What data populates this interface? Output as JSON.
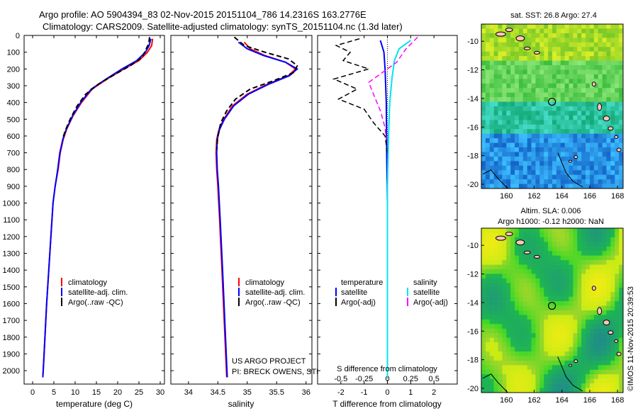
{
  "header": {
    "line1": "Argo profile: AO 5904394_83 02-Nov-2015 20151104_786 14.2316S 163.2776E",
    "line2": "Climatology: CARS2009. Satellite-adjusted climatology: synTS_20151104.nc (1.3d later)"
  },
  "footer": {
    "project": "US ARGO PROJECT",
    "pi": "PI: BRECK OWENS, STEVE JAYNE, P.E. ROBBINS",
    "stamp": "©IMOS 11-Nov-2015 20:39:53"
  },
  "colors": {
    "climatology": "#ff0000",
    "satellite": "#0000ff",
    "argo": "#000000",
    "salinity_sat": "#00e5ee",
    "salinity_argo": "#ff00ff"
  },
  "chart_data": [
    {
      "type": "line",
      "id": "temperature",
      "xlabel": "temperature (deg C)",
      "ylabel": "",
      "xlim": [
        -2,
        31
      ],
      "ylim": [
        2080,
        0
      ],
      "xticks": [
        0,
        5,
        10,
        15,
        20,
        25,
        30
      ],
      "yticks": [
        0,
        100,
        200,
        300,
        400,
        500,
        600,
        700,
        800,
        900,
        1000,
        1100,
        1200,
        1300,
        1400,
        1500,
        1600,
        1700,
        1800,
        1900,
        2000
      ],
      "legend": [
        "climatology",
        "satellite-adj. clim.",
        "Argo(..raw -QC)"
      ],
      "series": [
        {
          "name": "climatology",
          "style": "solid",
          "points": [
            [
              28.2,
              20
            ],
            [
              28.0,
              60
            ],
            [
              27.0,
              100
            ],
            [
              25.0,
              150
            ],
            [
              21.5,
              200
            ],
            [
              17.5,
              260
            ],
            [
              14.0,
              320
            ],
            [
              11.5,
              400
            ],
            [
              9.5,
              480
            ],
            [
              8.0,
              560
            ],
            [
              7.2,
              620
            ],
            [
              6.5,
              700
            ],
            [
              6.0,
              800
            ],
            [
              5.3,
              900
            ],
            [
              4.8,
              1000
            ],
            [
              4.3,
              1200
            ],
            [
              3.8,
              1400
            ],
            [
              3.3,
              1600
            ],
            [
              2.9,
              1800
            ],
            [
              2.6,
              1950
            ],
            [
              2.4,
              2040
            ]
          ]
        },
        {
          "name": "satellite-adj. clim.",
          "style": "solid",
          "points": [
            [
              27.8,
              20
            ],
            [
              27.4,
              60
            ],
            [
              26.5,
              100
            ],
            [
              24.5,
              150
            ],
            [
              21.0,
              200
            ],
            [
              17.3,
              260
            ],
            [
              13.8,
              320
            ],
            [
              11.3,
              400
            ],
            [
              9.4,
              480
            ],
            [
              7.9,
              560
            ],
            [
              7.1,
              620
            ],
            [
              6.4,
              700
            ],
            [
              5.9,
              800
            ],
            [
              5.3,
              900
            ],
            [
              4.8,
              1000
            ],
            [
              4.3,
              1200
            ],
            [
              3.8,
              1400
            ],
            [
              3.3,
              1600
            ],
            [
              2.9,
              1800
            ],
            [
              2.6,
              1950
            ],
            [
              2.4,
              2040
            ]
          ]
        },
        {
          "name": "Argo(..raw -QC)",
          "style": "dashed",
          "points": [
            [
              27.5,
              10
            ],
            [
              27.3,
              50
            ],
            [
              26.5,
              90
            ],
            [
              25.8,
              130
            ],
            [
              23.0,
              180
            ],
            [
              19.5,
              230
            ],
            [
              15.5,
              290
            ],
            [
              12.5,
              350
            ],
            [
              10.5,
              420
            ],
            [
              9.0,
              490
            ],
            [
              7.8,
              560
            ],
            [
              7.0,
              620
            ]
          ]
        }
      ]
    },
    {
      "type": "line",
      "id": "salinity",
      "xlabel": "salinity",
      "ylabel": "",
      "xlim": [
        33.7,
        36.1
      ],
      "ylim": [
        2080,
        0
      ],
      "xticks": [
        34,
        34.5,
        35,
        35.5,
        36
      ],
      "legend": [
        "climatology",
        "satellite-adj. clim.",
        "Argo(..raw -QC)"
      ],
      "series": [
        {
          "name": "climatology",
          "style": "solid",
          "points": [
            [
              34.95,
              40
            ],
            [
              35.05,
              80
            ],
            [
              35.3,
              120
            ],
            [
              35.65,
              160
            ],
            [
              35.82,
              200
            ],
            [
              35.7,
              240
            ],
            [
              35.35,
              290
            ],
            [
              35.0,
              350
            ],
            [
              34.75,
              420
            ],
            [
              34.6,
              500
            ],
            [
              34.52,
              560
            ],
            [
              34.48,
              620
            ],
            [
              34.47,
              700
            ],
            [
              34.48,
              800
            ],
            [
              34.5,
              900
            ],
            [
              34.53,
              1100
            ],
            [
              34.57,
              1400
            ],
            [
              34.62,
              1800
            ],
            [
              34.65,
              2040
            ]
          ]
        },
        {
          "name": "satellite-adj. clim.",
          "style": "solid",
          "points": [
            [
              34.85,
              40
            ],
            [
              35.0,
              80
            ],
            [
              35.28,
              120
            ],
            [
              35.65,
              160
            ],
            [
              35.85,
              200
            ],
            [
              35.72,
              240
            ],
            [
              35.37,
              290
            ],
            [
              35.02,
              350
            ],
            [
              34.77,
              420
            ],
            [
              34.61,
              500
            ],
            [
              34.53,
              560
            ],
            [
              34.49,
              620
            ],
            [
              34.48,
              700
            ],
            [
              34.49,
              800
            ],
            [
              34.51,
              900
            ],
            [
              34.54,
              1100
            ],
            [
              34.58,
              1400
            ],
            [
              34.63,
              1800
            ],
            [
              34.66,
              2040
            ]
          ]
        },
        {
          "name": "Argo(..raw -QC)",
          "style": "dashed",
          "points": [
            [
              34.78,
              10
            ],
            [
              34.95,
              60
            ],
            [
              35.3,
              100
            ],
            [
              35.7,
              140
            ],
            [
              35.85,
              180
            ],
            [
              35.8,
              220
            ],
            [
              35.45,
              270
            ],
            [
              35.05,
              320
            ],
            [
              34.8,
              380
            ],
            [
              34.65,
              450
            ],
            [
              34.55,
              520
            ],
            [
              34.5,
              600
            ],
            [
              34.48,
              680
            ]
          ]
        }
      ]
    },
    {
      "type": "line",
      "id": "difference",
      "xlabel": "T difference from climatology",
      "xlabel_top": "S difference from climatology",
      "xlim": [
        -3,
        3
      ],
      "ylim": [
        2080,
        0
      ],
      "xticks": [
        -2,
        -1,
        0,
        1,
        2
      ],
      "xticks_top": [
        -0.5,
        -0.25,
        0,
        0.25,
        0.5
      ],
      "xticklabels_top": [
        "-0.5",
        "-0.25",
        "0",
        "0.25",
        "0.5"
      ],
      "legend_headers": [
        "temperature",
        "salinity"
      ],
      "legend": [
        "satellite",
        "Argo(-adj)",
        "satellite",
        "Argo(-adj)"
      ],
      "series": [
        {
          "name": "T satellite",
          "style": "solid",
          "points": [
            [
              -0.3,
              30
            ],
            [
              -0.15,
              100
            ],
            [
              -0.1,
              200
            ],
            [
              -0.05,
              400
            ],
            [
              -0.03,
              700
            ],
            [
              0,
              1000
            ],
            [
              0,
              2040
            ]
          ]
        },
        {
          "name": "T Argo(-adj)",
          "style": "dashed",
          "points": [
            [
              -1.2,
              20
            ],
            [
              -2.2,
              60
            ],
            [
              -1.6,
              100
            ],
            [
              -1.9,
              150
            ],
            [
              -0.8,
              200
            ],
            [
              -2.3,
              260
            ],
            [
              -1.3,
              320
            ],
            [
              -2.1,
              380
            ],
            [
              -1.0,
              440
            ],
            [
              -0.6,
              520
            ],
            [
              -0.1,
              600
            ],
            [
              0,
              700
            ]
          ]
        },
        {
          "name": "S satellite",
          "style": "solid",
          "points": [
            [
              1.0,
              30
            ],
            [
              0.5,
              80
            ],
            [
              0.3,
              150
            ],
            [
              0.2,
              250
            ],
            [
              0.1,
              400
            ],
            [
              0.05,
              600
            ],
            [
              0,
              900
            ],
            [
              0,
              2040
            ]
          ]
        },
        {
          "name": "S Argo(-adj)",
          "style": "dashed",
          "points": [
            [
              1.3,
              10
            ],
            [
              0.8,
              80
            ],
            [
              0.4,
              160
            ],
            [
              -0.8,
              280
            ],
            [
              -0.6,
              350
            ],
            [
              -0.3,
              450
            ],
            [
              -0.1,
              550
            ],
            [
              -0.05,
              620
            ]
          ]
        }
      ]
    },
    {
      "type": "heatmap",
      "id": "sst_map",
      "title": "sat. SST: 26.8 Argo: 27.4",
      "xlim": [
        158.2,
        168.4
      ],
      "ylim": [
        -20.3,
        -8.8
      ],
      "xticks": [
        160,
        162,
        164,
        166,
        168
      ],
      "yticks": [
        -10,
        -12,
        -14,
        -16,
        -18,
        -20
      ],
      "xticklabels": [
        "160",
        "162",
        "164",
        "166",
        "168"
      ],
      "yticklabels": [
        "-10",
        "-12",
        "-14",
        "-16",
        "-18",
        "-20"
      ],
      "marker": [
        163.28,
        -14.23
      ]
    },
    {
      "type": "heatmap",
      "id": "sla_map",
      "title": "Altim. SLA: 0.006",
      "subtitle": "Argo h1000: -0.12 h2000: NaN",
      "xlim": [
        158.2,
        168.4
      ],
      "ylim": [
        -20.3,
        -8.8
      ],
      "xticks": [
        160,
        162,
        164,
        166,
        168
      ],
      "yticks": [
        -10,
        -12,
        -14,
        -16,
        -18,
        -20
      ],
      "xticklabels": [
        "160",
        "162",
        "164",
        "166",
        "168"
      ],
      "yticklabels": [
        "-10",
        "-12",
        "-14",
        "-16",
        "-18",
        "-20"
      ],
      "marker": [
        163.28,
        -14.23
      ]
    }
  ]
}
